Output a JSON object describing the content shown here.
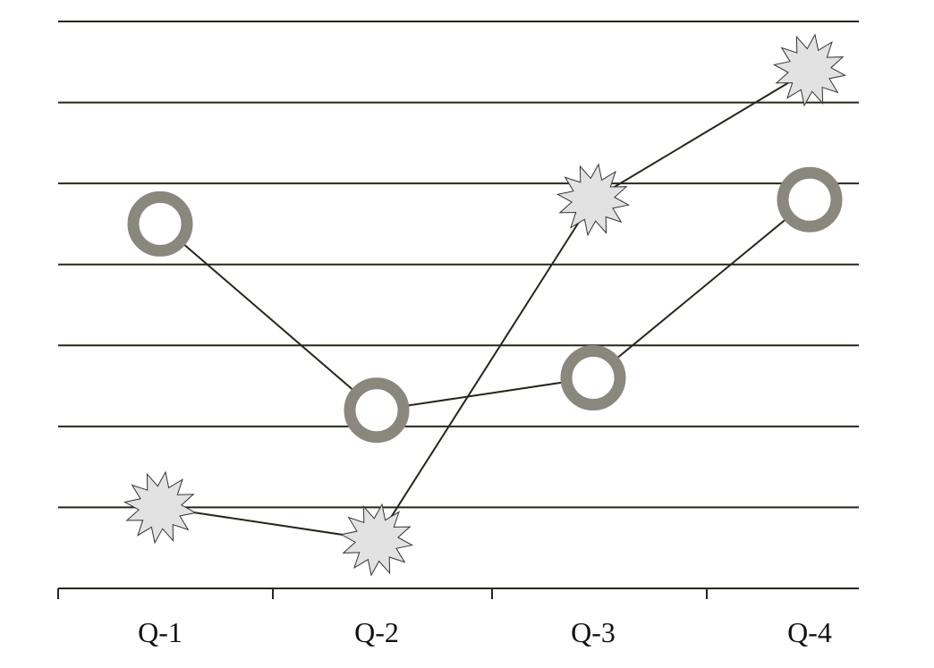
{
  "chart_data": {
    "type": "line",
    "categories": [
      "Q-1",
      "Q-2",
      "Q-3",
      "Q-4"
    ],
    "series": [
      {
        "color": "#8a877c",
        "marker": "circle",
        "values": [
          4.5,
          2.2,
          2.6,
          4.8
        ]
      },
      {
        "color": "#e2e2e2",
        "marker": "star",
        "values": [
          1.0,
          0.6,
          4.8,
          6.4
        ]
      }
    ],
    "line_color": "#26261a",
    "ylim": [
      0,
      7
    ],
    "yticks": [
      0,
      1,
      2,
      3,
      4,
      5,
      6,
      7
    ],
    "grid": true
  }
}
